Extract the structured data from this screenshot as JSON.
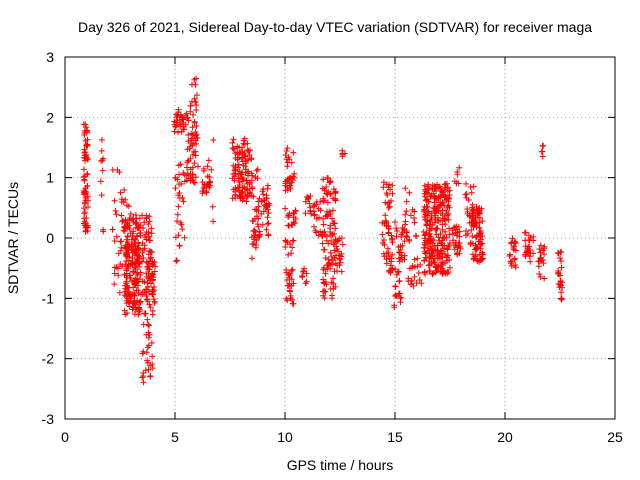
{
  "chart_data": {
    "type": "scatter",
    "title": "Day 326 of 2021, Sidereal Day-to-day VTEC variation (SDTVAR) for receiver maga",
    "xlabel": "GPS time / hours",
    "ylabel": "SDTVAR / TECUs",
    "xlim": [
      0,
      25
    ],
    "ylim": [
      -3,
      3
    ],
    "xticks": [
      0,
      5,
      10,
      15,
      20,
      25
    ],
    "yticks": [
      -3,
      -2,
      -1,
      0,
      1,
      2,
      3
    ],
    "grid": true,
    "marker": "+",
    "marker_color": "#ff0000",
    "series": [
      {
        "name": "SDTVAR",
        "clusters": [
          {
            "x": [
              0.85,
              1.05
            ],
            "y": [
              0.1,
              1.9
            ],
            "n": 70
          },
          {
            "x": [
              1.6,
              1.75
            ],
            "y": [
              -0.6,
              1.8
            ],
            "n": 10
          },
          {
            "x": [
              2.15,
              2.5
            ],
            "y": [
              -1.0,
              1.6
            ],
            "n": 18
          },
          {
            "x": [
              2.5,
              3.0
            ],
            "y": [
              -0.5,
              0.8
            ],
            "n": 30
          },
          {
            "x": [
              2.7,
              3.45
            ],
            "y": [
              -1.3,
              0.4
            ],
            "n": 200
          },
          {
            "x": [
              3.5,
              4.0
            ],
            "y": [
              -2.5,
              0.4
            ],
            "n": 90
          },
          {
            "x": [
              3.65,
              4.1
            ],
            "y": [
              -1.1,
              -0.4
            ],
            "n": 35
          },
          {
            "x": [
              4.95,
              5.5
            ],
            "y": [
              1.75,
              2.15
            ],
            "n": 30
          },
          {
            "x": [
              5.0,
              5.45
            ],
            "y": [
              -0.5,
              1.4
            ],
            "n": 30
          },
          {
            "x": [
              5.5,
              6.05
            ],
            "y": [
              0.9,
              2.2
            ],
            "n": 60
          },
          {
            "x": [
              5.75,
              6.0
            ],
            "y": [
              2.2,
              2.65
            ],
            "n": 10
          },
          {
            "x": [
              6.2,
              6.6
            ],
            "y": [
              0.7,
              1.2
            ],
            "n": 22
          },
          {
            "x": [
              6.5,
              6.75
            ],
            "y": [
              0.1,
              1.8
            ],
            "n": 6
          },
          {
            "x": [
              7.6,
              8.5
            ],
            "y": [
              0.6,
              1.65
            ],
            "n": 110
          },
          {
            "x": [
              8.5,
              8.9
            ],
            "y": [
              -0.1,
              1.2
            ],
            "n": 30
          },
          {
            "x": [
              8.4,
              8.7
            ],
            "y": [
              -0.35,
              0.1
            ],
            "n": 10
          },
          {
            "x": [
              8.9,
              9.3
            ],
            "y": [
              0.0,
              0.9
            ],
            "n": 30
          },
          {
            "x": [
              10.0,
              10.45
            ],
            "y": [
              0.7,
              1.5
            ],
            "n": 30
          },
          {
            "x": [
              10.0,
              10.5
            ],
            "y": [
              0.2,
              0.5
            ],
            "n": 18
          },
          {
            "x": [
              10.0,
              10.4
            ],
            "y": [
              -1.1,
              -0.5
            ],
            "n": 25
          },
          {
            "x": [
              10.0,
              10.4
            ],
            "y": [
              -0.3,
              0.0
            ],
            "n": 10
          },
          {
            "x": [
              10.7,
              11.0
            ],
            "y": [
              -0.8,
              -0.5
            ],
            "n": 8
          },
          {
            "x": [
              10.9,
              11.4
            ],
            "y": [
              0.3,
              0.7
            ],
            "n": 15
          },
          {
            "x": [
              11.3,
              11.7
            ],
            "y": [
              0.0,
              0.6
            ],
            "n": 15
          },
          {
            "x": [
              11.7,
              12.3
            ],
            "y": [
              -1.0,
              1.0
            ],
            "n": 100
          },
          {
            "x": [
              12.3,
              12.65
            ],
            "y": [
              -0.6,
              0.0
            ],
            "n": 20
          },
          {
            "x": [
              12.55,
              12.75
            ],
            "y": [
              1.3,
              1.45
            ],
            "n": 5
          },
          {
            "x": [
              14.4,
              14.9
            ],
            "y": [
              -0.6,
              1.0
            ],
            "n": 55
          },
          {
            "x": [
              14.95,
              15.3
            ],
            "y": [
              -1.2,
              -0.5
            ],
            "n": 18
          },
          {
            "x": [
              15.0,
              15.5
            ],
            "y": [
              -0.4,
              0.3
            ],
            "n": 25
          },
          {
            "x": [
              15.4,
              16.0
            ],
            "y": [
              -0.1,
              0.85
            ],
            "n": 20
          },
          {
            "x": [
              15.6,
              16.2
            ],
            "y": [
              -0.8,
              -0.3
            ],
            "n": 20
          },
          {
            "x": [
              16.3,
              17.5
            ],
            "y": [
              -0.6,
              0.9
            ],
            "n": 280
          },
          {
            "x": [
              17.6,
              18.0
            ],
            "y": [
              -0.3,
              0.2
            ],
            "n": 30
          },
          {
            "x": [
              17.7,
              18.0
            ],
            "y": [
              0.9,
              1.2
            ],
            "n": 6
          },
          {
            "x": [
              18.2,
              18.6
            ],
            "y": [
              -0.2,
              0.9
            ],
            "n": 30
          },
          {
            "x": [
              18.5,
              19.0
            ],
            "y": [
              -0.4,
              0.55
            ],
            "n": 80
          },
          {
            "x": [
              20.2,
              20.5
            ],
            "y": [
              -0.5,
              0.0
            ],
            "n": 20
          },
          {
            "x": [
              20.9,
              21.3
            ],
            "y": [
              -0.4,
              0.1
            ],
            "n": 25
          },
          {
            "x": [
              21.5,
              21.8
            ],
            "y": [
              -0.7,
              -0.1
            ],
            "n": 20
          },
          {
            "x": [
              21.55,
              21.75
            ],
            "y": [
              1.35,
              1.55
            ],
            "n": 5
          },
          {
            "x": [
              22.4,
              22.6
            ],
            "y": [
              -1.05,
              -0.2
            ],
            "n": 25
          }
        ]
      }
    ]
  }
}
